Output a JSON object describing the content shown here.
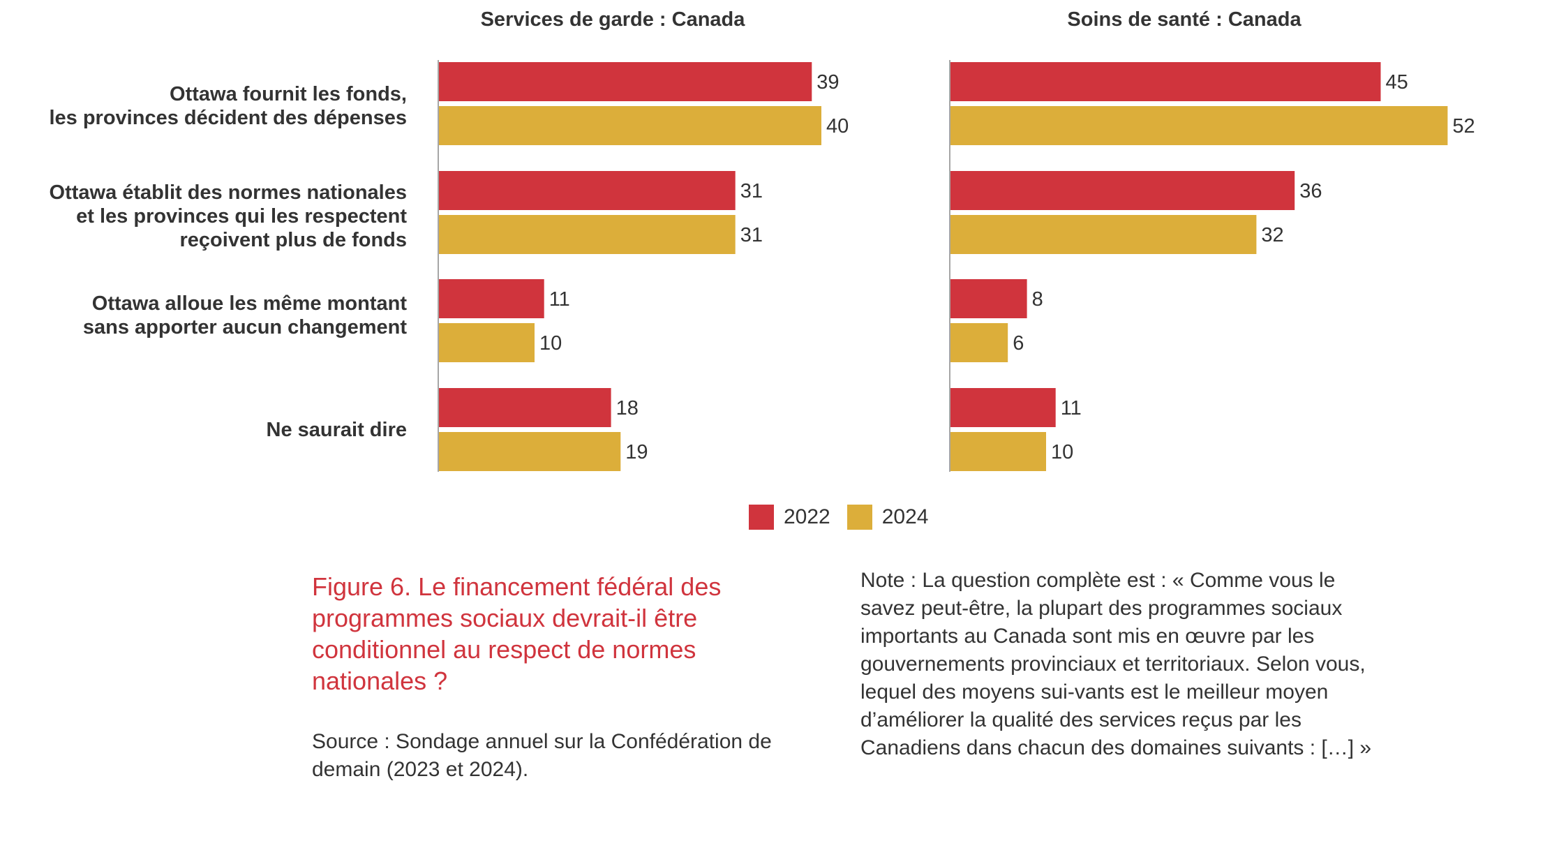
{
  "chart_data": [
    {
      "type": "bar",
      "orientation": "horizontal",
      "title": "Services de garde : Canada",
      "categories": [
        "Ottawa fournit les fonds,\nles provinces décident des dépenses",
        "Ottawa établit des normes nationales\net les provinces qui les respectent\nreçoivent plus de fonds",
        "Ottawa alloue les même montant\nsans apporter aucun changement",
        "Ne saurait dire"
      ],
      "series": [
        {
          "name": "2022",
          "color": "#d0343d",
          "values": [
            39,
            31,
            11,
            18
          ]
        },
        {
          "name": "2024",
          "color": "#dcae3a",
          "values": [
            40,
            31,
            10,
            19
          ]
        }
      ],
      "xlabel": "",
      "ylabel": "",
      "xlim": [
        0,
        55
      ],
      "grid": false
    },
    {
      "type": "bar",
      "orientation": "horizontal",
      "title": "Soins de santé : Canada",
      "categories": [
        "Ottawa fournit les fonds,\nles provinces décident des dépenses",
        "Ottawa établit des normes nationales\net les provinces qui les respectent\nreçoivent plus de fonds",
        "Ottawa alloue les même montant\nsans apporter aucun changement",
        "Ne saurait dire"
      ],
      "series": [
        {
          "name": "2022",
          "color": "#d0343d",
          "values": [
            45,
            36,
            8,
            11
          ]
        },
        {
          "name": "2024",
          "color": "#dcae3a",
          "values": [
            52,
            32,
            6,
            10
          ]
        }
      ],
      "xlabel": "",
      "ylabel": "",
      "xlim": [
        0,
        55
      ],
      "grid": false
    }
  ],
  "legend": {
    "placement": "bottom-center",
    "items": [
      {
        "label": "2022",
        "color": "#d0343d"
      },
      {
        "label": "2024",
        "color": "#dcae3a"
      }
    ]
  },
  "caption": {
    "figure_title": "Figure 6. Le financement fédéral des programmes sociaux devrait-il être conditionnel au respect de normes nationales ?",
    "source": "Source : Sondage annuel sur la Confédération de demain (2023 et 2024).",
    "note": "Note : La question complète est : « Comme vous le savez peut-être, la plupart des programmes sociaux importants au Canada sont mis en œuvre par les gouvernements provinciaux et territoriaux. Selon vous, lequel des moyens sui-vants est le meilleur moyen d’améliorer la qualité des services reçus par les Canadiens dans chacun des domaines suivants : […] »"
  }
}
